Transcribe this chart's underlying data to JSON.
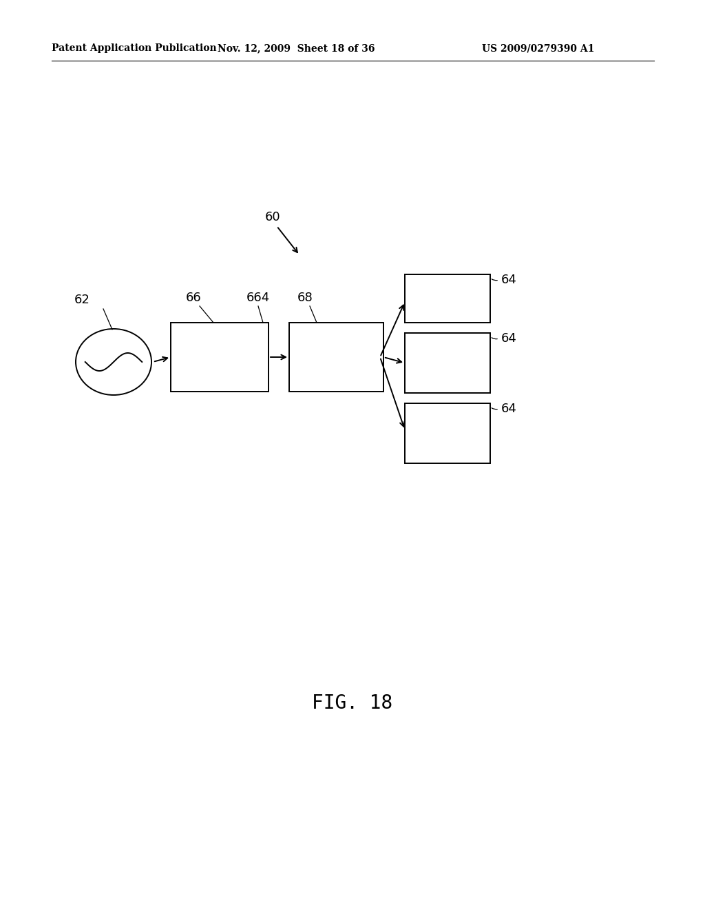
{
  "bg_color": "#ffffff",
  "header_left": "Patent Application Publication",
  "header_mid": "Nov. 12, 2009  Sheet 18 of 36",
  "header_right": "US 2009/0279390 A1",
  "fig_label": "FIG. 18",
  "label_60": "60",
  "label_62": "62",
  "label_66": "66",
  "label_664": "664",
  "label_68": "68",
  "label_64": "64",
  "line_color": "#000000",
  "line_width": 1.4,
  "header_fontsize": 10,
  "label_fontsize": 13,
  "fig_fontsize": 20
}
